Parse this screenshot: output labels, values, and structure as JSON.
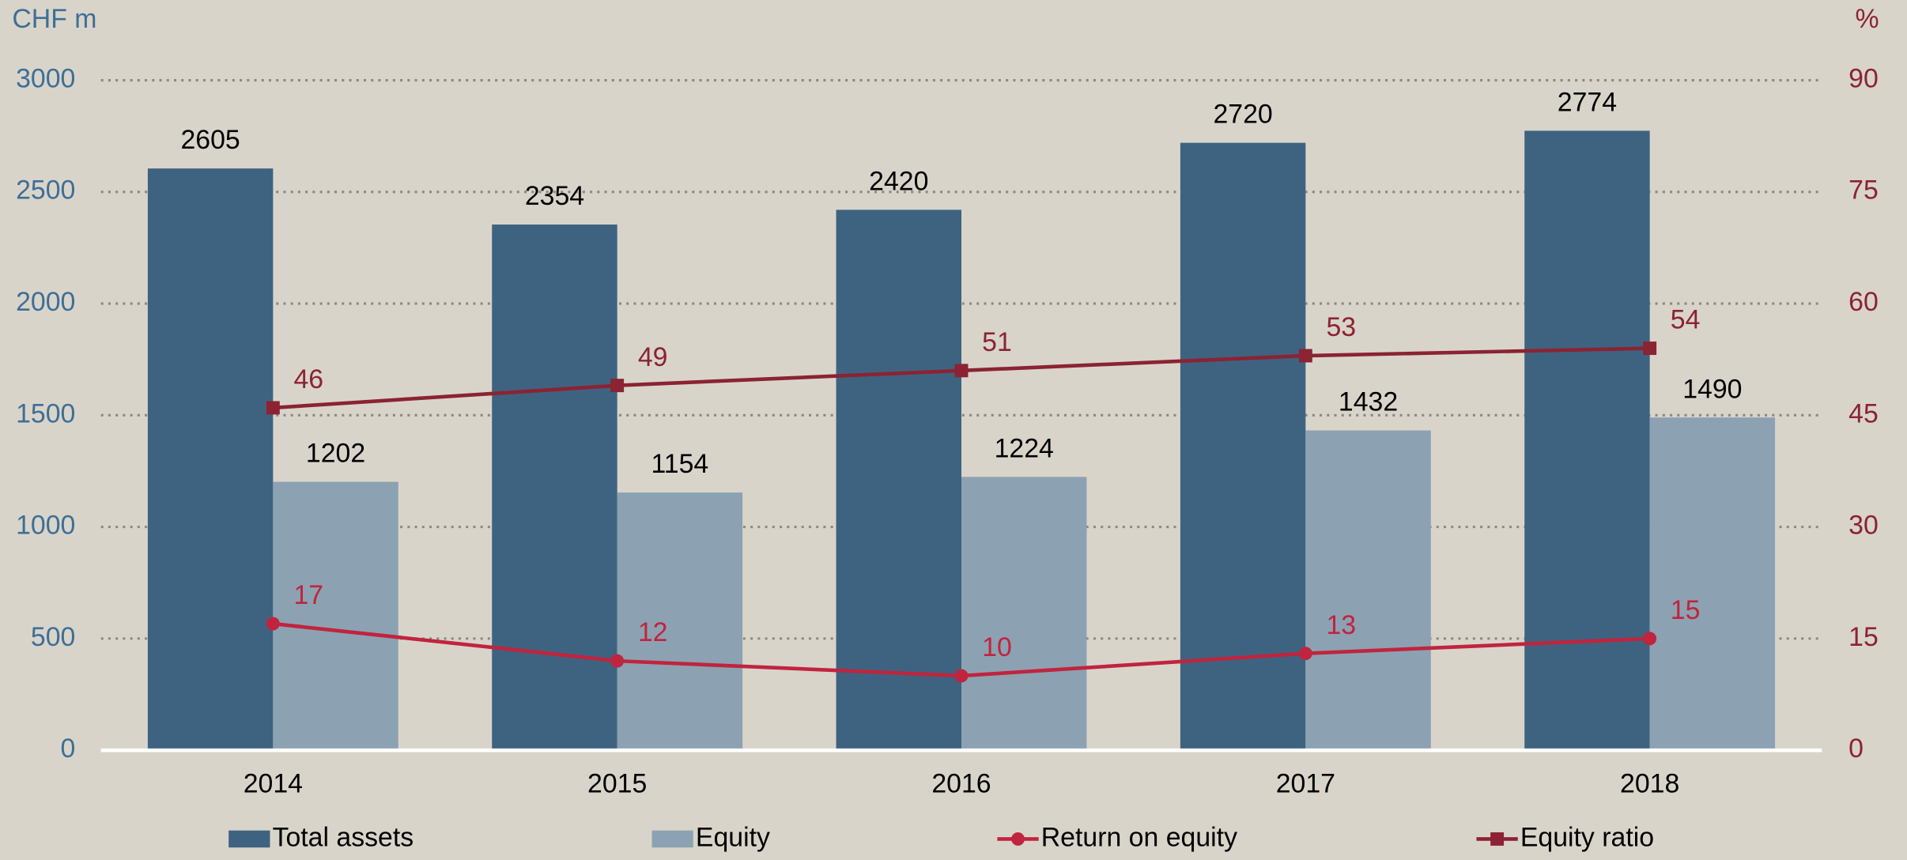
{
  "chart_data": {
    "type": "bar-line",
    "y_unit": "CHF m",
    "y2_unit": "%",
    "categories": [
      "2014",
      "2015",
      "2016",
      "2017",
      "2018"
    ],
    "series": [
      {
        "name": "Total assets",
        "type": "bar",
        "color": "#3e6380",
        "values": [
          2605,
          2354,
          2420,
          2720,
          2774
        ]
      },
      {
        "name": "Equity",
        "type": "bar",
        "color": "#8ca2b2",
        "values": [
          1202,
          1154,
          1224,
          1432,
          1490
        ]
      },
      {
        "name": "Return on equity",
        "type": "line",
        "marker": "circle",
        "axis": "y2",
        "color": "#c0243e",
        "values": [
          17,
          12,
          10,
          13,
          15
        ]
      },
      {
        "name": "Equity ratio",
        "type": "line",
        "marker": "square",
        "axis": "y2",
        "color": "#8b2332",
        "values": [
          46,
          49,
          51,
          53,
          54
        ]
      }
    ],
    "ylim": [
      0,
      3000
    ],
    "yticks": [
      0,
      500,
      1000,
      1500,
      2000,
      2500,
      3000
    ],
    "y2lim": [
      0,
      90
    ],
    "y2ticks": [
      0,
      15,
      30,
      45,
      60,
      75,
      90
    ],
    "grid": true,
    "legend": "bottom"
  }
}
